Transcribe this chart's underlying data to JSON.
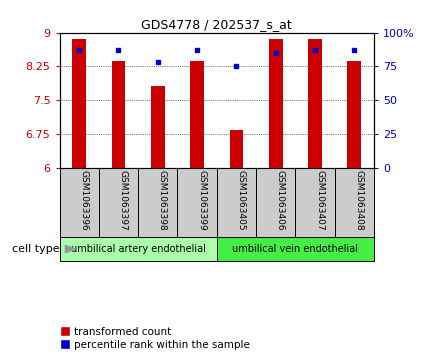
{
  "title": "GDS4778 / 202537_s_at",
  "samples": [
    "GSM1063396",
    "GSM1063397",
    "GSM1063398",
    "GSM1063399",
    "GSM1063405",
    "GSM1063406",
    "GSM1063407",
    "GSM1063408"
  ],
  "transformed_count": [
    8.87,
    8.37,
    7.82,
    8.38,
    6.84,
    8.87,
    8.87,
    8.38
  ],
  "percentile_rank": [
    87,
    87,
    78,
    87,
    75,
    85,
    87,
    87
  ],
  "ylim": [
    6,
    9
  ],
  "yticks": [
    6,
    6.75,
    7.5,
    8.25,
    9
  ],
  "ytick_labels": [
    "6",
    "6.75",
    "7.5",
    "8.25",
    "9"
  ],
  "right_yticks": [
    0,
    25,
    50,
    75,
    100
  ],
  "right_ytick_labels": [
    "0",
    "25",
    "50",
    "75",
    "100%"
  ],
  "bar_color": "#cc0000",
  "dot_color": "#0000cc",
  "bar_width": 0.35,
  "groups": [
    {
      "label": "umbilical artery endothelial",
      "start": 0,
      "end": 3,
      "color": "#aaffaa"
    },
    {
      "label": "umbilical vein endothelial",
      "start": 4,
      "end": 7,
      "color": "#44ee44"
    }
  ],
  "cell_type_label": "cell type",
  "legend_red": "transformed count",
  "legend_blue": "percentile rank within the sample",
  "grid_color": "#888888",
  "bg_color": "#ffffff",
  "label_bg": "#cccccc"
}
